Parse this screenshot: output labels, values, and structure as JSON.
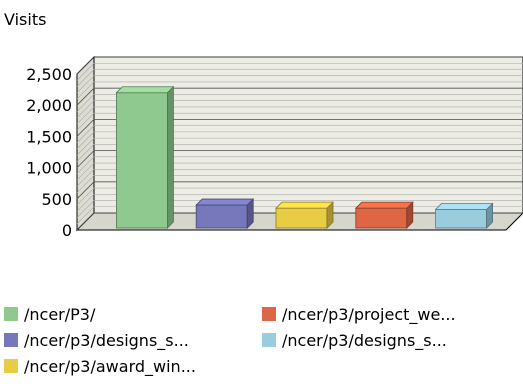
{
  "chart_data": {
    "type": "bar",
    "title": "",
    "ylabel": "Visits",
    "xlabel": "",
    "ylim": [
      0,
      2500
    ],
    "yticks": [
      0,
      500,
      1000,
      1500,
      2000,
      2500
    ],
    "ytick_labels": [
      "0",
      "500",
      "1,000",
      "1,500",
      "2,000",
      "2,500"
    ],
    "grid": true,
    "legend_position": "bottom",
    "categories": [
      "/ncer/P3/",
      "/ncer/p3/designs_s...",
      "/ncer/p3/award_win...",
      "/ncer/p3/project_we...",
      "/ncer/p3/designs_s..."
    ],
    "values": [
      2200,
      400,
      350,
      350,
      330
    ],
    "colors": [
      "#8fc98f",
      "#7777bb",
      "#e8cc44",
      "#dd6644",
      "#99ccdd"
    ]
  },
  "legend": {
    "items": [
      {
        "label": "/ncer/P3/",
        "color": "#8fc98f"
      },
      {
        "label": "/ncer/p3/project_we...",
        "color": "#dd6644"
      },
      {
        "label": "/ncer/p3/designs_s...",
        "color": "#7777bb"
      },
      {
        "label": "/ncer/p3/designs_s...",
        "color": "#99ccdd"
      },
      {
        "label": "/ncer/p3/award_win...",
        "color": "#e8cc44"
      }
    ]
  }
}
